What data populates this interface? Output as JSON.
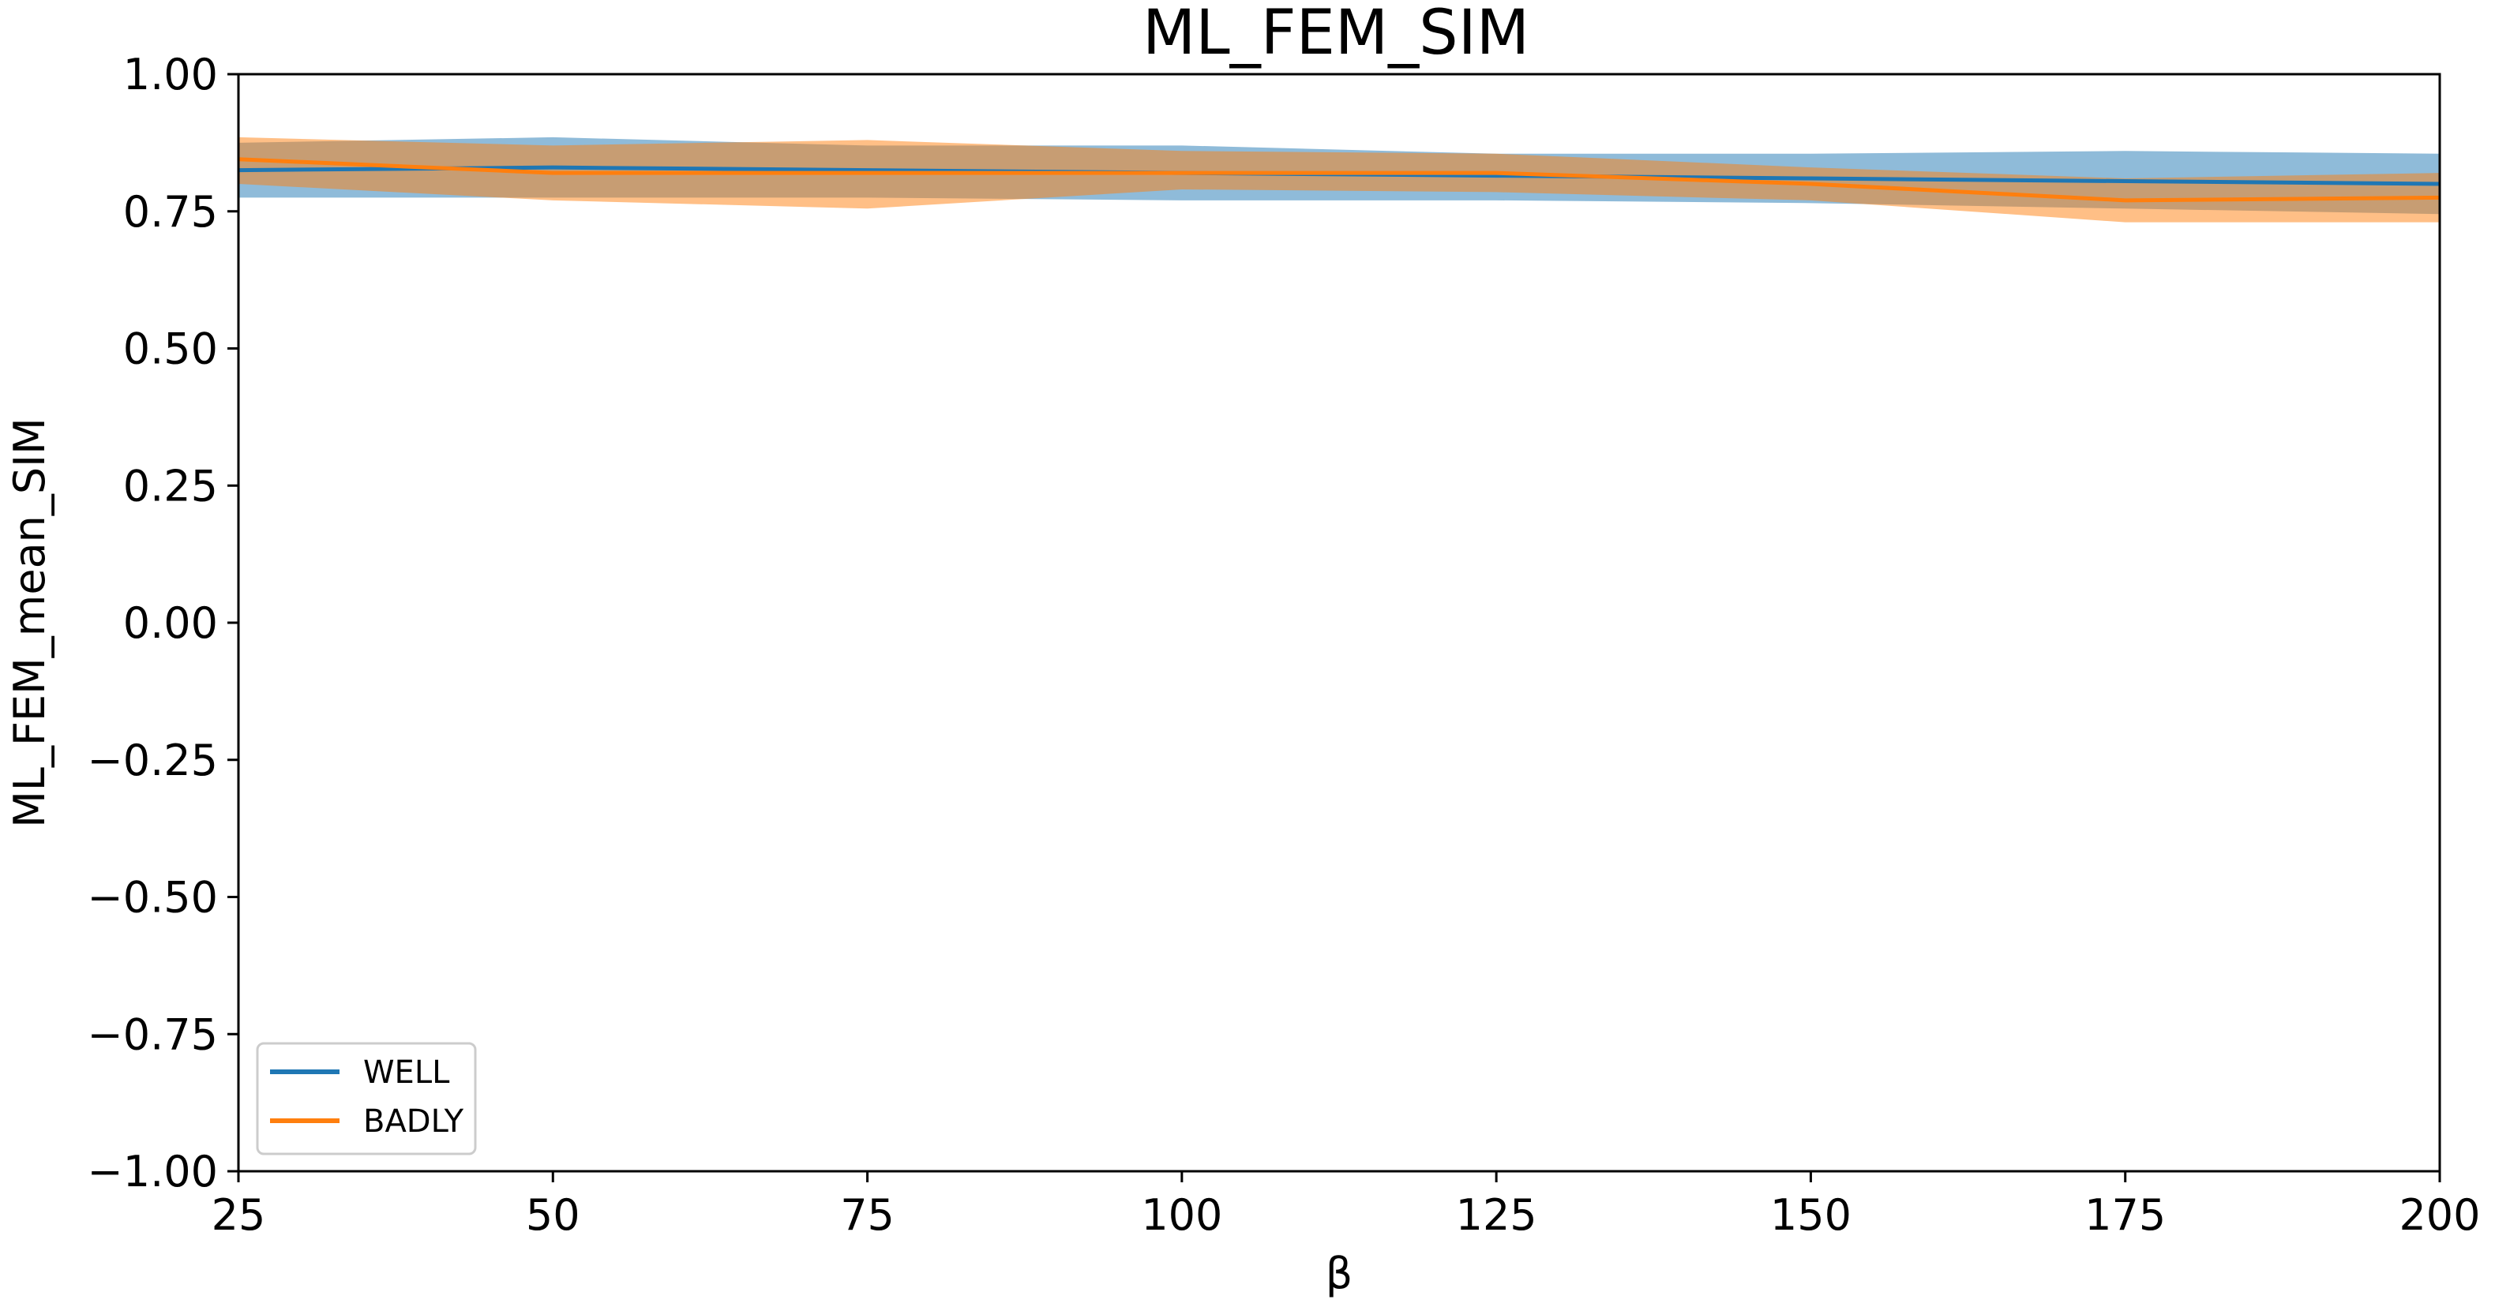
{
  "chart_data": {
    "type": "line",
    "title": "ML_FEM_SIM",
    "xlabel": "β",
    "ylabel": "ML_FEM_mean_SIM",
    "x": [
      25,
      50,
      75,
      100,
      125,
      150,
      175,
      200
    ],
    "xlim": [
      25,
      200
    ],
    "ylim": [
      -1.0,
      1.0
    ],
    "x_ticks": [
      "25",
      "50",
      "75",
      "100",
      "125",
      "150",
      "175",
      "200"
    ],
    "y_ticks": [
      "1.00",
      "0.75",
      "0.50",
      "0.25",
      "0.00",
      "−0.25",
      "−0.50",
      "−0.75",
      "−1.00"
    ],
    "x_tick_values": [
      25,
      50,
      75,
      100,
      125,
      150,
      175,
      200
    ],
    "y_tick_values": [
      1.0,
      0.75,
      0.5,
      0.25,
      0.0,
      -0.25,
      -0.5,
      -0.75,
      -1.0
    ],
    "grid": false,
    "legend_position": "lower-left",
    "series": [
      {
        "name": "WELL",
        "color": "#1f77b4",
        "values": [
          0.825,
          0.83,
          0.825,
          0.82,
          0.815,
          0.81,
          0.805,
          0.8
        ],
        "upper": [
          0.875,
          0.885,
          0.87,
          0.87,
          0.855,
          0.855,
          0.86,
          0.855
        ],
        "lower": [
          0.775,
          0.775,
          0.775,
          0.77,
          0.77,
          0.765,
          0.755,
          0.745
        ]
      },
      {
        "name": "BADLY",
        "color": "#ff7f0e",
        "values": [
          0.845,
          0.82,
          0.82,
          0.82,
          0.82,
          0.8,
          0.77,
          0.775
        ],
        "upper": [
          0.885,
          0.87,
          0.88,
          0.86,
          0.855,
          0.83,
          0.81,
          0.82
        ],
        "lower": [
          0.8,
          0.77,
          0.755,
          0.79,
          0.785,
          0.77,
          0.73,
          0.73
        ]
      }
    ]
  }
}
